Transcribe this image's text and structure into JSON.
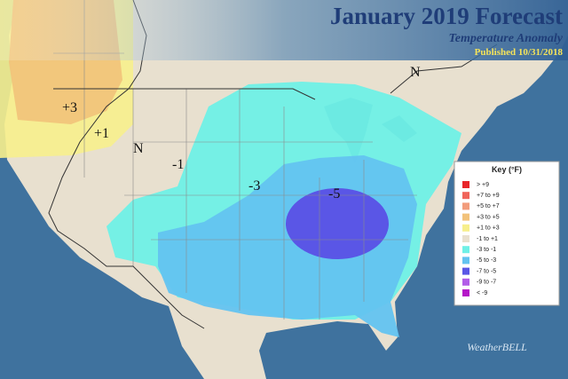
{
  "header": {
    "title": "January 2019 Forecast",
    "subtitle": "Temperature Anomaly",
    "published": "Published 10/31/2018"
  },
  "map_labels": [
    "+3",
    "+1",
    "N",
    "-1",
    "-3",
    "-5",
    "N"
  ],
  "key": {
    "title": "Key (°F)",
    "items": [
      {
        "label": "> +9",
        "color": "#e8262a"
      },
      {
        "label": "+7 to +9",
        "color": "#f0645a"
      },
      {
        "label": "+5 to +7",
        "color": "#f29c7c"
      },
      {
        "label": "+3 to +5",
        "color": "#f2c27a"
      },
      {
        "label": "+1 to +3",
        "color": "#f7ef8c"
      },
      {
        "label": "-1 to +1",
        "color": "#e8e0cf"
      },
      {
        "label": "-3 to -1",
        "color": "#6ff0e6"
      },
      {
        "label": "-5 to -3",
        "color": "#63c3f0"
      },
      {
        "label": "-7 to -5",
        "color": "#5a56e6"
      },
      {
        "label": "-9 to -7",
        "color": "#b25ce8"
      },
      {
        "label": "< -9",
        "color": "#b516c8"
      }
    ]
  },
  "logo": "WeatherBELL"
}
